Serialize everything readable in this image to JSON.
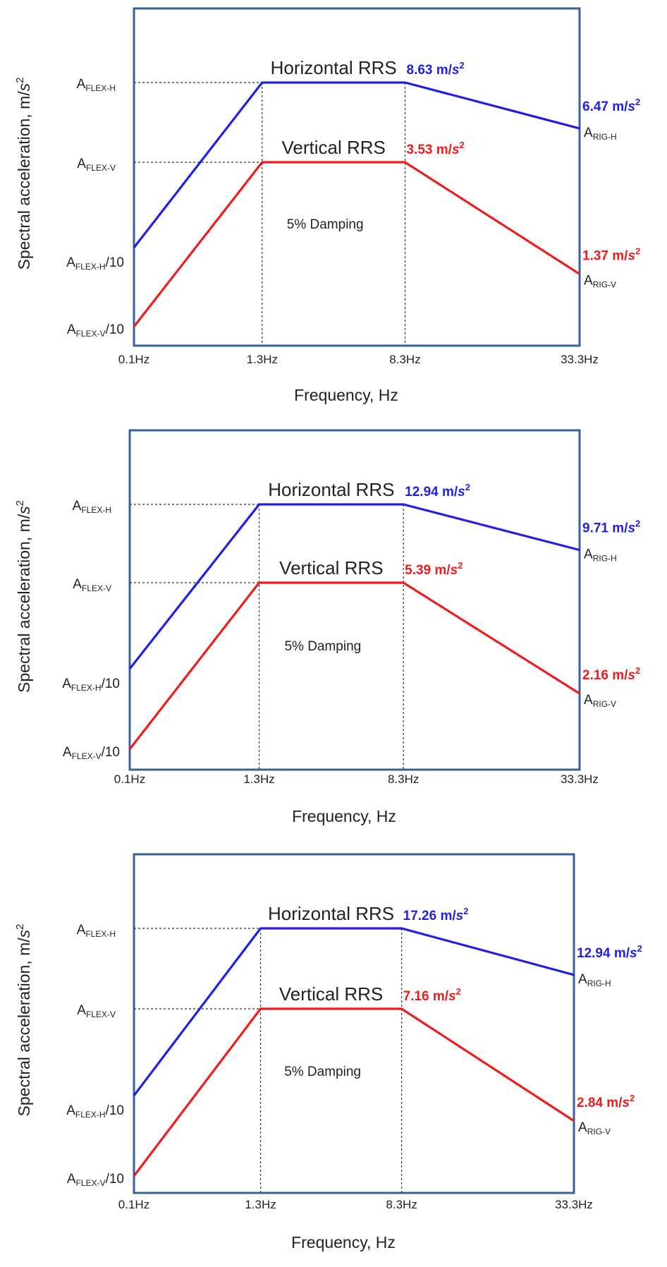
{
  "chart_data": [
    {
      "type": "line",
      "xlabel": "Frequency, Hz",
      "ylabel": "Spectral acceleration, m/s²",
      "x_ticks": [
        "0.1Hz",
        "1.3Hz",
        "8.3Hz",
        "33.3Hz"
      ],
      "y_ticks": [
        "AFLEX-H",
        "AFLEX-V",
        "AFLEX-H/10",
        "AFLEX-V/10"
      ],
      "x": [
        0.1,
        1.3,
        8.3,
        33.3
      ],
      "annotation": "5% Damping",
      "series": [
        {
          "name": "Horizontal RRS",
          "color": "#1f1fe6",
          "values": [
            0.863,
            8.63,
            8.63,
            6.47
          ],
          "peak_label": "8.63 m/s²",
          "end_label": "6.47 m/s²",
          "end_tag": "ARIG-H"
        },
        {
          "name": "Vertical RRS",
          "color": "#ee1c1c",
          "values": [
            0.353,
            3.53,
            3.53,
            1.37
          ],
          "peak_label": "3.53 m/s²",
          "end_label": "1.37 m/s²",
          "end_tag": "ARIG-V"
        }
      ]
    },
    {
      "type": "line",
      "xlabel": "Frequency, Hz",
      "ylabel": "Spectral acceleration, m/s²",
      "x_ticks": [
        "0.1Hz",
        "1.3Hz",
        "8.3Hz",
        "33.3Hz"
      ],
      "y_ticks": [
        "AFLEX-H",
        "AFLEX-V",
        "AFLEX-H/10",
        "AFLEX-V/10"
      ],
      "x": [
        0.1,
        1.3,
        8.3,
        33.3
      ],
      "annotation": "5% Damping",
      "series": [
        {
          "name": "Horizontal RRS",
          "color": "#1f1fe6",
          "values": [
            1.294,
            12.94,
            12.94,
            9.71
          ],
          "peak_label": "12.94 m/s²",
          "end_label": "9.71 m/s²",
          "end_tag": "ARIG-H"
        },
        {
          "name": "Vertical RRS",
          "color": "#ee1c1c",
          "values": [
            0.539,
            5.39,
            5.39,
            2.16
          ],
          "peak_label": "5.39 m/s²",
          "end_label": "2.16 m/s²",
          "end_tag": "ARIG-V"
        }
      ]
    },
    {
      "type": "line",
      "xlabel": "Frequency, Hz",
      "ylabel": "Spectral acceleration, m/s²",
      "x_ticks": [
        "0.1Hz",
        "1.3Hz",
        "8.3Hz",
        "33.3Hz"
      ],
      "y_ticks": [
        "AFLEX-H",
        "AFLEX-V",
        "AFLEX-H/10",
        "AFLEX-V/10"
      ],
      "x": [
        0.1,
        1.3,
        8.3,
        33.3
      ],
      "annotation": "5% Damping",
      "series": [
        {
          "name": "Horizontal RRS",
          "color": "#1f1fe6",
          "values": [
            1.726,
            17.26,
            17.26,
            12.94
          ],
          "peak_label": "17.26 m/s²",
          "end_label": "12.94 m/s²",
          "end_tag": "ARIG-H"
        },
        {
          "name": "Vertical RRS",
          "color": "#ee1c1c",
          "values": [
            0.716,
            7.16,
            7.16,
            2.84
          ],
          "peak_label": "7.16 m/s²",
          "end_label": "2.84 m/s²",
          "end_tag": "ARIG-V"
        }
      ]
    }
  ]
}
